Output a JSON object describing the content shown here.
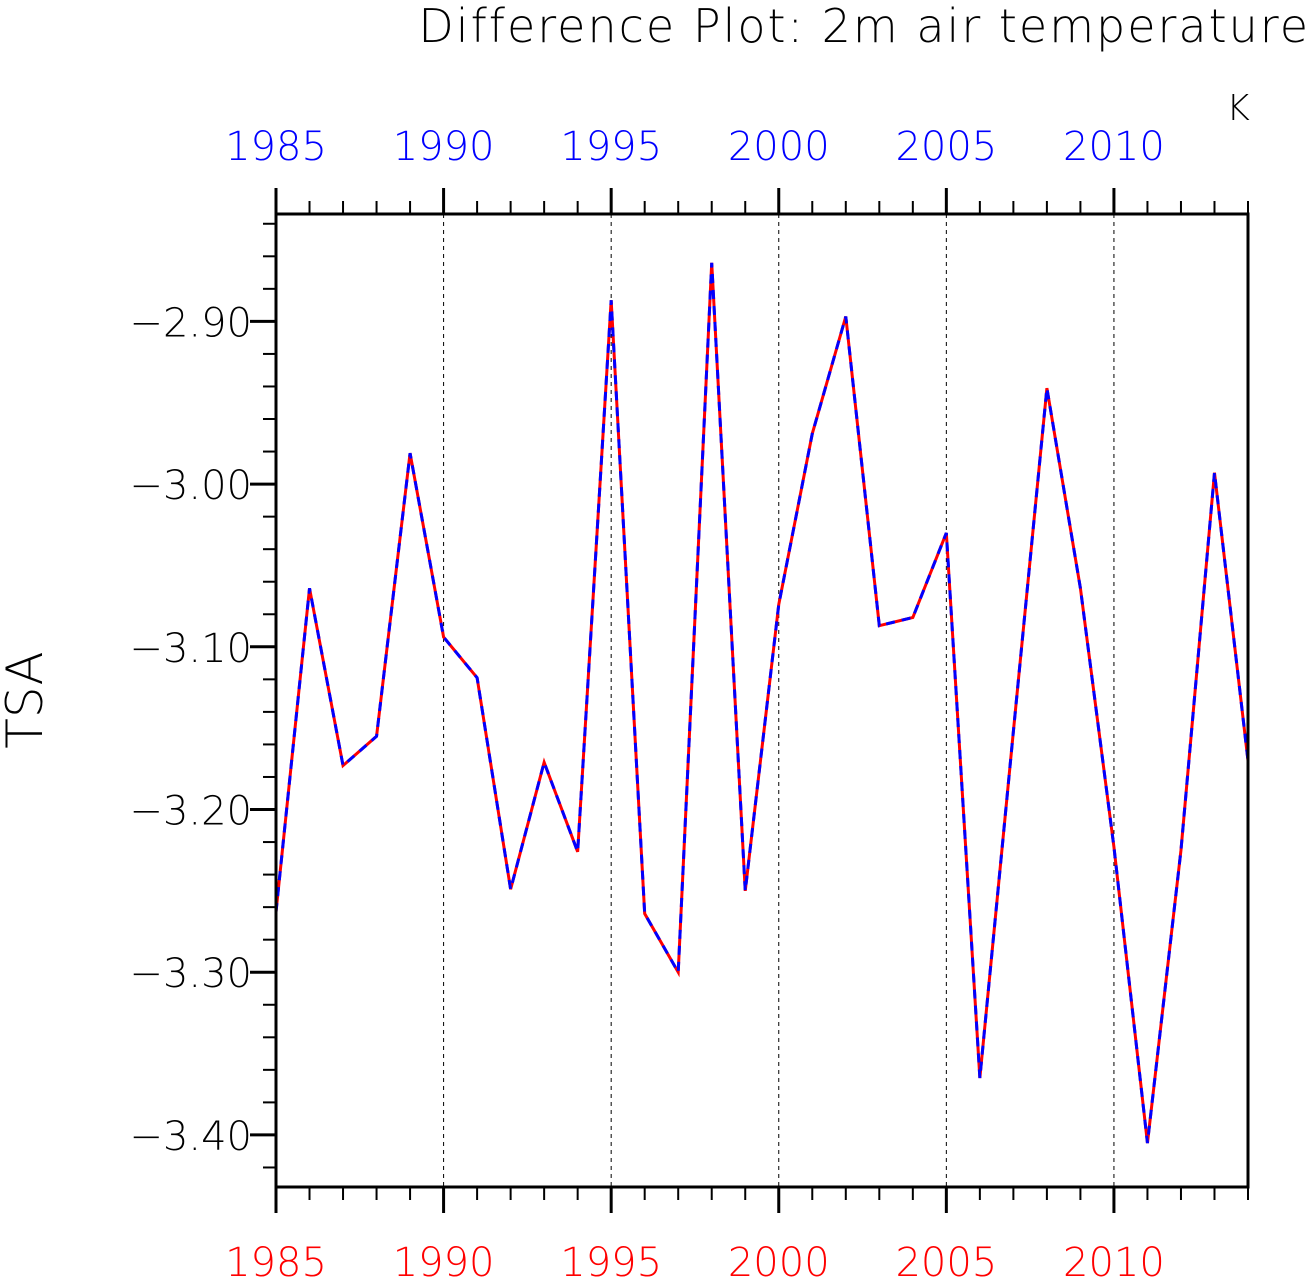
{
  "chart_data": {
    "type": "line",
    "title": "Difference Plot: 2m air temperature",
    "units": "K",
    "ylabel": "TSA",
    "xlim": [
      1985,
      2014
    ],
    "ylim": [
      -3.432,
      -2.834
    ],
    "y_ticks": [
      -2.9,
      -3.0,
      -3.1,
      -3.2,
      -3.3,
      -3.4
    ],
    "y_tick_labels": [
      "−2.90",
      "−3.00",
      "−3.10",
      "−3.20",
      "−3.30",
      "−3.40"
    ],
    "x_ticks": [
      1985,
      1990,
      1995,
      2000,
      2005,
      2010
    ],
    "x_tick_labels_bottom": [
      "1985",
      "1990",
      "1995",
      "2000",
      "2005",
      "2010"
    ],
    "x_tick_labels_top": [
      "1985",
      "1990",
      "1995",
      "2000",
      "2005",
      "2010"
    ],
    "grid": "vertical-dashed",
    "x": [
      1985,
      1986,
      1987,
      1988,
      1989,
      1990,
      1991,
      1992,
      1993,
      1994,
      1995,
      1996,
      1997,
      1998,
      1999,
      2000,
      2001,
      2002,
      2003,
      2004,
      2005,
      2006,
      2007,
      2008,
      2009,
      2010,
      2011,
      2012,
      2013,
      2014
    ],
    "series": [
      {
        "color": "#ff0000",
        "style": "solid",
        "values": [
          -3.263,
          -3.064,
          -3.173,
          -3.155,
          -2.981,
          -3.094,
          -3.119,
          -3.249,
          -3.171,
          -3.226,
          -2.887,
          -3.264,
          -3.3,
          -2.864,
          -3.25,
          -3.074,
          -2.969,
          -2.897,
          -3.087,
          -3.082,
          -3.03,
          -3.365,
          -3.152,
          -2.941,
          -3.064,
          -3.223,
          -3.405,
          -3.225,
          -2.993,
          -3.17
        ]
      },
      {
        "color": "#0000ff",
        "style": "dashed",
        "values": [
          -3.263,
          -3.064,
          -3.173,
          -3.155,
          -2.981,
          -3.094,
          -3.119,
          -3.249,
          -3.171,
          -3.226,
          -2.887,
          -3.264,
          -3.3,
          -2.864,
          -3.25,
          -3.074,
          -2.969,
          -2.897,
          -3.087,
          -3.082,
          -3.03,
          -3.365,
          -3.152,
          -2.941,
          -3.064,
          -3.223,
          -3.405,
          -3.225,
          -2.993,
          -3.17
        ]
      }
    ],
    "colors": {
      "axis": "#000000",
      "bottom_tick_labels": "#ff0000",
      "top_tick_labels": "#0000ff",
      "grid": "#000000"
    }
  }
}
